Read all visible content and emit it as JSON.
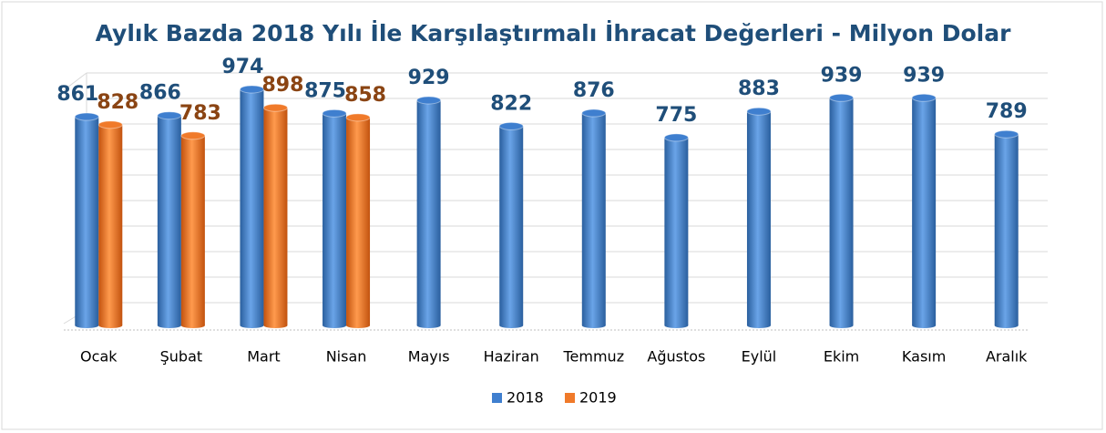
{
  "chart_data": {
    "type": "bar3d",
    "title": "Aylık Bazda 2018 Yılı İle Karşılaştırmalı İhracat Değerleri - Milyon Dolar",
    "categories": [
      "Ocak",
      "Şubat",
      "Mart",
      "Nisan",
      "Mayıs",
      "Haziran",
      "Temmuz",
      "Ağustos",
      "Eylül",
      "Ekim",
      "Kasım",
      "Aralık"
    ],
    "series": [
      {
        "name": "2018",
        "color": "#3f7fcf",
        "values": [
          861,
          866,
          974,
          875,
          929,
          822,
          876,
          775,
          883,
          939,
          939,
          789
        ]
      },
      {
        "name": "2019",
        "color": "#f07a2a",
        "values": [
          828,
          783,
          898,
          858,
          null,
          null,
          null,
          null,
          null,
          null,
          null,
          null
        ]
      }
    ],
    "label_colors": [
      "#1f4e79",
      "#8a4413"
    ],
    "legend": "bottom"
  }
}
